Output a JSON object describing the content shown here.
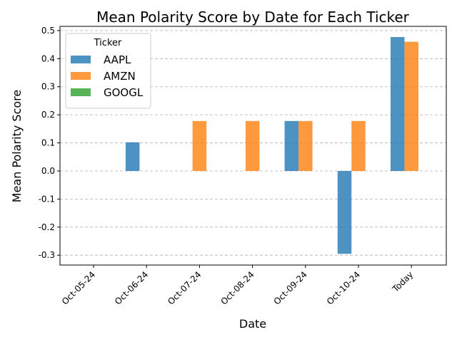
{
  "chart_data": {
    "type": "bar",
    "title": "Mean Polarity Score by Date for Each Ticker",
    "xlabel": "Date",
    "ylabel": "Mean Polarity Score",
    "categories": [
      "Oct-05-24",
      "Oct-06-24",
      "Oct-07-24",
      "Oct-08-24",
      "Oct-09-24",
      "Oct-10-24",
      "Today"
    ],
    "series": [
      {
        "name": "AAPL",
        "color": "#1f77b4",
        "values": [
          null,
          0.102,
          null,
          null,
          0.178,
          -0.295,
          0.477
        ]
      },
      {
        "name": "AMZN",
        "color": "#ff7f0e",
        "values": [
          null,
          null,
          0.178,
          0.178,
          0.178,
          0.178,
          0.46
        ]
      },
      {
        "name": "GOOGL",
        "color": "#2ca02c",
        "values": [
          null,
          null,
          null,
          null,
          null,
          null,
          null
        ]
      }
    ],
    "ylim": [
      -0.335,
      0.515
    ],
    "yticks": [
      "-0.3",
      "-0.2",
      "-0.1",
      "0.0",
      "0.1",
      "0.2",
      "0.3",
      "0.4",
      "0.5"
    ],
    "ytick_values": [
      -0.3,
      -0.2,
      -0.1,
      0.0,
      0.1,
      0.2,
      0.3,
      0.4,
      0.5
    ],
    "grid": "y-dashed",
    "legend": {
      "title": "Ticker",
      "placement": "top-left"
    }
  }
}
